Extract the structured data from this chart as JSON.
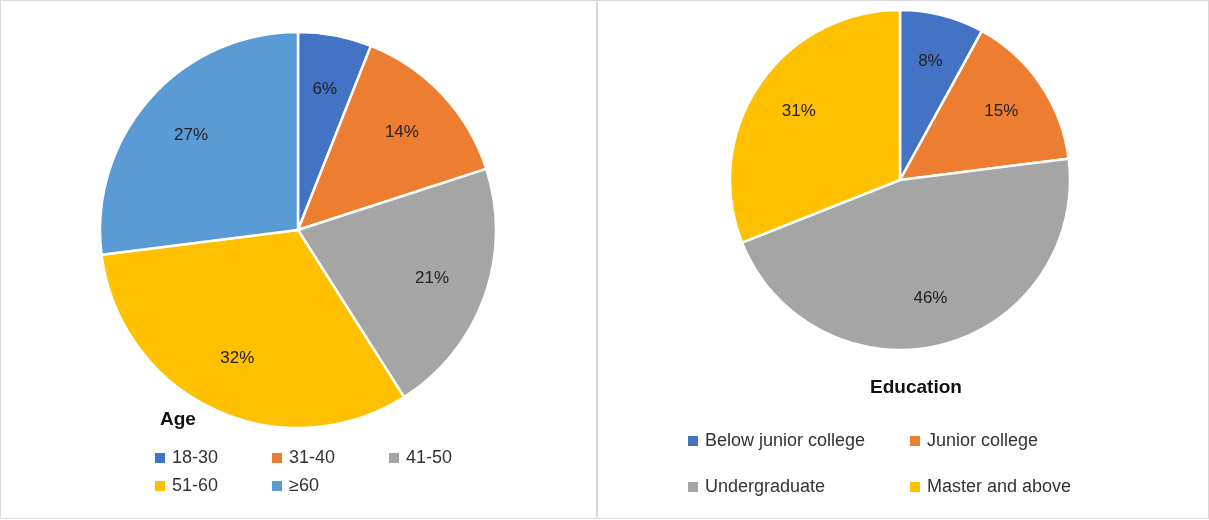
{
  "chart_data": [
    {
      "type": "pie",
      "title": "Age",
      "categories": [
        "18-30",
        "31-40",
        "41-50",
        "51-60",
        "≥60"
      ],
      "values": [
        6,
        14,
        21,
        32,
        27
      ],
      "value_labels": [
        "6%",
        "14%",
        "21%",
        "32%",
        "27%"
      ],
      "colors": [
        "#4472c4",
        "#ed7d31",
        "#a5a5a5",
        "#ffc000",
        "#5b9bd5"
      ],
      "legend": "bottom"
    },
    {
      "type": "pie",
      "title": "Education",
      "categories": [
        "Below junior college",
        "Junior college",
        "Undergraduate",
        "Master and above"
      ],
      "values": [
        8,
        15,
        46,
        31
      ],
      "value_labels": [
        "8%",
        "15%",
        "46%",
        "31%"
      ],
      "colors": [
        "#4472c4",
        "#ed7d31",
        "#a5a5a5",
        "#ffc000"
      ],
      "legend": "bottom"
    }
  ]
}
